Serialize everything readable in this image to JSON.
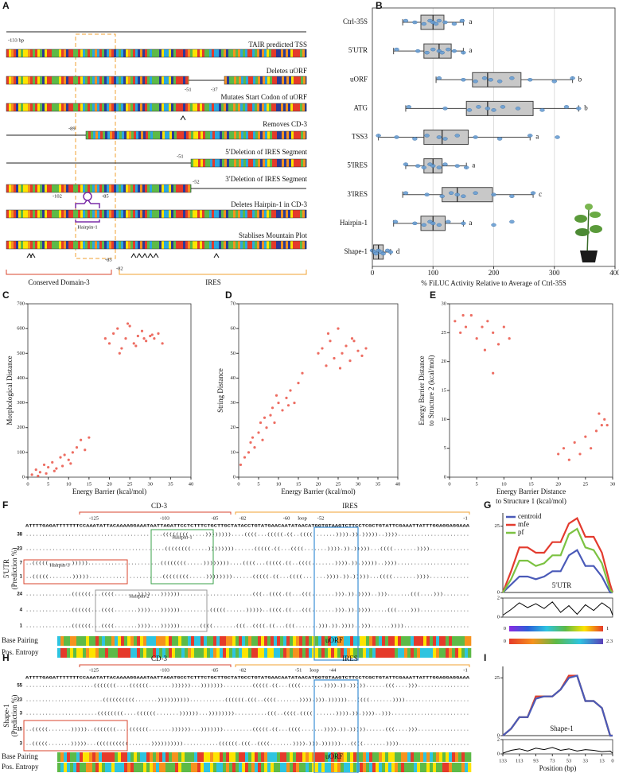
{
  "panel_labels": [
    "A",
    "B",
    "C",
    "D",
    "E",
    "F",
    "G",
    "H",
    "I"
  ],
  "construct_map": {
    "rows": [
      {
        "note": "TAIR predicted TSS",
        "positions": [
          "-133 bp"
        ]
      },
      {
        "note": "Deletes uORF",
        "positions": [
          "-51",
          "-37"
        ]
      },
      {
        "note": "Mutates Start Codon of uORF"
      },
      {
        "note": "Removes CD-3",
        "positions": [
          "-89"
        ]
      },
      {
        "note": "5′Deletion of IRES Segment",
        "positions": [
          "-51"
        ]
      },
      {
        "note": "3′Deletion of IRES Segment",
        "positions": [
          "-52"
        ]
      },
      {
        "note": "Deletes Hairpin-1 in CD-3",
        "positions": [
          "-102",
          "-85"
        ]
      },
      {
        "note": "Stablises Mountain Plot",
        "positions": [
          "-85",
          "-82"
        ]
      }
    ],
    "hairpin_label": "Hairpin-1",
    "domains": [
      "Conserved Domain-3",
      "IRES"
    ]
  },
  "chart_data": [
    {
      "type": "box",
      "categories": [
        "Ctrl-35S",
        "5'UTR",
        "uORF",
        "ATG",
        "TSS3",
        "5'IRES",
        "3'IRES",
        "Hairpin-1",
        "Shape-1"
      ],
      "q1": [
        80,
        85,
        165,
        155,
        85,
        85,
        115,
        80,
        2
      ],
      "median": [
        100,
        110,
        190,
        190,
        115,
        100,
        140,
        100,
        10
      ],
      "q3": [
        118,
        130,
        245,
        265,
        158,
        115,
        198,
        120,
        18
      ],
      "whisker_low": [
        50,
        35,
        105,
        55,
        10,
        55,
        50,
        35,
        0
      ],
      "whisker_high": [
        150,
        150,
        330,
        340,
        260,
        155,
        265,
        150,
        30
      ],
      "points": [
        [
          55,
          70,
          85,
          95,
          100,
          105,
          110,
          120,
          135,
          148
        ],
        [
          40,
          75,
          90,
          100,
          110,
          115,
          125,
          135,
          150
        ],
        [
          110,
          150,
          170,
          185,
          195,
          210,
          230,
          260,
          300,
          330
        ],
        [
          60,
          120,
          160,
          175,
          190,
          200,
          215,
          240,
          280,
          320,
          340
        ],
        [
          10,
          40,
          70,
          90,
          110,
          120,
          140,
          170,
          210,
          260,
          305
        ],
        [
          55,
          75,
          85,
          95,
          100,
          110,
          120,
          140,
          155
        ],
        [
          55,
          90,
          115,
          130,
          140,
          150,
          170,
          200,
          230,
          265
        ],
        [
          38,
          70,
          85,
          95,
          100,
          110,
          125,
          150,
          200,
          230
        ],
        [
          0,
          3,
          6,
          10,
          14,
          18,
          25,
          30
        ]
      ],
      "group_letters": [
        "a",
        "a",
        "b",
        "b",
        "a",
        "a",
        "c",
        "a",
        "d"
      ],
      "x_label": "% FiLUC Activity Relative to Average of Ctrl-35S",
      "xlim": [
        0,
        400
      ],
      "xticks": [
        0,
        100,
        200,
        300,
        400
      ],
      "grid": true,
      "color": "#c8c8c8",
      "point_color": "#6a9fd4"
    },
    {
      "type": "scatter",
      "x_label": "Energy Barrier (kcal/mol)",
      "y_label": "Morphological Distance",
      "x": [
        1,
        2,
        3,
        4,
        5,
        6,
        7,
        8,
        9,
        10,
        11,
        12,
        13,
        14,
        15,
        2.5,
        4.5,
        6.5,
        8.5,
        10.5,
        19,
        20,
        21,
        22,
        23,
        24,
        25,
        26,
        27,
        28,
        29,
        30,
        31,
        32,
        33,
        22.5,
        24.5,
        26.5,
        28.5,
        30.5
      ],
      "values": [
        10,
        30,
        20,
        50,
        40,
        60,
        35,
        80,
        90,
        70,
        100,
        120,
        150,
        110,
        160,
        5,
        15,
        25,
        45,
        55,
        560,
        540,
        580,
        600,
        520,
        560,
        610,
        540,
        570,
        590,
        550,
        570,
        560,
        580,
        540,
        500,
        620,
        530,
        560,
        575
      ],
      "xlim": [
        0,
        40
      ],
      "xticks": [
        0,
        5,
        10,
        15,
        20,
        25,
        30,
        35,
        40
      ],
      "ylim": [
        0,
        700
      ],
      "yticks": [
        0,
        100,
        200,
        300,
        400,
        500,
        600,
        700
      ],
      "color": "#e8483b"
    },
    {
      "type": "scatter",
      "x_label": "Energy Barrier (kcal/mol)",
      "y_label": "String Distance",
      "x": [
        0.5,
        1.5,
        2.5,
        3,
        4,
        5,
        5.5,
        6,
        7,
        8,
        8.5,
        9,
        10,
        11,
        12,
        13,
        14,
        15,
        16,
        3.5,
        6.5,
        9.5,
        12.5,
        20,
        21,
        22,
        23,
        24,
        25,
        26,
        27,
        28,
        29,
        30,
        31,
        32,
        22.5,
        25.5,
        28.5
      ],
      "values": [
        5,
        8,
        10,
        14,
        12,
        18,
        22,
        15,
        20,
        25,
        28,
        22,
        30,
        27,
        32,
        35,
        30,
        38,
        42,
        16,
        24,
        33,
        29,
        50,
        52,
        45,
        55,
        48,
        60,
        50,
        53,
        47,
        55,
        51,
        49,
        52,
        58,
        44,
        56
      ],
      "xlim": [
        0,
        40
      ],
      "xticks": [
        0,
        5,
        10,
        15,
        20,
        25,
        30,
        35,
        40
      ],
      "ylim": [
        0,
        70
      ],
      "yticks": [
        0,
        10,
        20,
        30,
        40,
        50,
        60,
        70
      ],
      "color": "#e8483b"
    },
    {
      "type": "scatter",
      "x_label": [
        "Energy Barrier Distance",
        "to Structure 1 (kcal/mol)"
      ],
      "y_label": [
        "Energy Barrier Distance",
        "to Structure 2 (kcal/mol)"
      ],
      "x": [
        1,
        2,
        3,
        4,
        5,
        6,
        7,
        8,
        9,
        10,
        11,
        2.5,
        6.5,
        8,
        20,
        21,
        22,
        23,
        24,
        25,
        26,
        27,
        28,
        28.5,
        29,
        27.5
      ],
      "values": [
        27,
        25,
        26,
        28,
        24,
        26,
        27,
        25,
        23,
        26,
        24,
        28,
        22,
        18,
        4,
        5,
        3,
        6,
        4,
        7,
        5,
        8,
        9,
        10,
        9,
        11
      ],
      "xlim": [
        0,
        30
      ],
      "xticks": [
        0,
        5,
        10,
        15,
        20,
        25,
        30
      ],
      "ylim": [
        0,
        30
      ],
      "yticks": [
        0,
        5,
        10,
        15,
        20,
        25,
        30
      ],
      "color": "#e8483b"
    },
    {
      "type": "line",
      "label": "5′UTR",
      "legend": true,
      "x": [
        133,
        123,
        113,
        103,
        93,
        83,
        73,
        63,
        53,
        43,
        33,
        23,
        13,
        3,
        0
      ],
      "series": [
        {
          "name": "centroid",
          "color": "#4a5ab8",
          "values": [
            0,
            3,
            6,
            6,
            5,
            6,
            8,
            8,
            14,
            16,
            10,
            10,
            6,
            0,
            0
          ]
        },
        {
          "name": "mfe",
          "color": "#e33b2e",
          "values": [
            0,
            8,
            17,
            17,
            15,
            15,
            19,
            19,
            26,
            28,
            21,
            21,
            15,
            3,
            0
          ]
        },
        {
          "name": "pf",
          "color": "#7cc242",
          "values": [
            0,
            5,
            12,
            12,
            10,
            11,
            14,
            14,
            22,
            24,
            17,
            16,
            11,
            1,
            0
          ]
        }
      ],
      "xlim": [
        133,
        0
      ],
      "ylim": [
        0,
        30
      ],
      "yticks": [
        0,
        25
      ]
    },
    {
      "type": "line",
      "x": [
        133,
        123,
        113,
        103,
        93,
        83,
        73,
        63,
        53,
        43,
        33,
        23,
        13,
        3,
        0
      ],
      "series": [
        {
          "color": "#000000",
          "values": [
            0.2,
            0.8,
            1.5,
            1.0,
            1.4,
            0.9,
            1.6,
            0.5,
            1.2,
            0.3,
            1.3,
            0.7,
            1.5,
            0.9,
            0.2
          ]
        }
      ],
      "xlim": [
        133,
        0
      ],
      "ylim": [
        0,
        2
      ],
      "yticks": [
        0,
        2
      ]
    },
    {
      "type": "line",
      "label": "Shape-1",
      "x": [
        133,
        123,
        113,
        103,
        93,
        83,
        73,
        63,
        53,
        43,
        33,
        23,
        13,
        3,
        0
      ],
      "series": [
        {
          "color": "#7cc242",
          "values": [
            0,
            3,
            8,
            8,
            17,
            17,
            17,
            20,
            26,
            26,
            15,
            15,
            12,
            0,
            0
          ]
        },
        {
          "color": "#e33b2e",
          "values": [
            0,
            3,
            8,
            8,
            17,
            17,
            17,
            20,
            26,
            26,
            15,
            15,
            12,
            0,
            0
          ]
        },
        {
          "color": "#4a5ab8",
          "values": [
            0,
            3,
            8,
            8,
            16,
            17,
            17,
            20,
            25,
            26,
            15,
            15,
            12,
            0,
            0
          ]
        }
      ],
      "xlim": [
        133,
        0
      ],
      "ylim": [
        0,
        30
      ],
      "yticks": [
        0,
        25
      ]
    },
    {
      "type": "line",
      "x": [
        133,
        123,
        113,
        103,
        93,
        83,
        73,
        63,
        53,
        43,
        33,
        23,
        13,
        3,
        0
      ],
      "series": [
        {
          "color": "#000000",
          "values": [
            0.1,
            0.5,
            0.7,
            0.4,
            0.8,
            0.6,
            0.9,
            0.5,
            0.7,
            0.4,
            0.6,
            0.5,
            0.3,
            0.4,
            0.1
          ]
        }
      ],
      "xlim": [
        133,
        0
      ],
      "ylim": [
        0,
        2
      ],
      "yticks": [
        0,
        2
      ],
      "xticks": [
        133,
        113,
        93,
        73,
        53,
        33,
        13,
        0
      ],
      "x_label": "Position (bp)"
    }
  ],
  "alignments": [
    {
      "y_label": [
        "5'UTR",
        "(Prediction %)"
      ],
      "domains": [
        "CD-3",
        "IRES"
      ],
      "positions": [
        "-125",
        "-103",
        "-85",
        "-82",
        "-60",
        "loop",
        "-52",
        "-1"
      ],
      "sequence": "ATTTTGAGATTTTTTTCCAAATATTACAAAAGGAAATAATTAGATTCCTCTTTCTGCTTGCTATACCTGTATGAACAATATAACATGGTGTAAGTCTTCCTCGCTGTATTCGAAATTATTTGGAGGAGGAAA",
      "rows": [
        {
          "percent": 38,
          "color": "#1f7a5a",
          "structure": "..........................................((((((((.....))))))))....((((...(((((.((..((((.......)))).)).)))))..))))......................"
        },
        {
          "percent": 23,
          "color": "#1f7a5a",
          "structure": "..........................................((((((((.....))))))))......(((((.((...((((.......)))).)).)))))...((((.......))))............"
        },
        {
          "percent": 7,
          "color": "#1f7a5a",
          "structure": "..(((((.......)))))......................((((((((.....))))))))....((((...(((((.((..((((.......)))).)).)))))..))))......................"
        },
        {
          "percent": 1,
          "color": "#1f7a5a",
          "structure": "..(((((.......)))))......................((((((((.....))))))))......(((((.((...((((.......)))).)).)))))...((((.......))))............"
        },
        {
          "percent": 24,
          "color": "#b3261e",
          "structure": "..............((((((...((((.......))))...))))))......................(((..((((.((...(((.......))).)).))))..))).......(((....)))........"
        },
        {
          "percent": 4,
          "color": "#b3261e",
          "structure": "..............((((((...((((.......))))...)))))).........(((((......)))))..((((.((...(((.......))).)).)))).....(((....)))..............."
        },
        {
          "percent": 1,
          "color": "#b3261e",
          "structure": "..............((((((...((((.......))))...))))))......((((.......(((..((((.((...(((.......))).)).))))..)))......))))...................."
        }
      ],
      "hairpins": [
        "Hairpin-1",
        "Hairpin-3",
        "Hairpin-2"
      ],
      "tracks": [
        "Base Pairing",
        "Pos. Entropy"
      ],
      "uorf": "uORF"
    },
    {
      "y_label": [
        "Shape-1",
        "(Prediction %)"
      ],
      "domains": [
        "CD-3",
        "IRES"
      ],
      "positions": [
        "-125",
        "-103",
        "-85",
        "-82",
        "-51",
        "loop",
        "-44",
        "-1"
      ],
      "sequence": "ATTTTGAGATTTTTTTCCAAATATTACAAAAGGAAATAATTAGATGCCTCTTTCTGCTTGCTATGCCTGTATGAACAATATAACATGGTGTAAGTCTTCCTCGCTGTATTCGAAATTATTTGGAGGAGGAAA",
      "rows": [
        {
          "percent": 55,
          "color": "#111111",
          "structure": ".....................(((((((....((((((.......))))))...))))))).........(((((.((...((((.......)))).)).)))))......(((....)))................"
        },
        {
          "percent": 23,
          "color": "#111111",
          "structure": "........................((((((((((.......))))))))))...........((((((.(((..((((.......)))).))).))))))...((((.......))))...................."
        },
        {
          "percent": 3,
          "color": "#111111",
          "structure": "......................((((((((....((((((.......))))))...))))))))..........(((..((((.((((.......)))).)).))))..)))........................"
        },
        {
          "percent": 15,
          "color": "#111111",
          "structure": "..(((((.......)))))..(((((((....((((((.......))))))...))))))).........(((((.((...((((.......)))).)).)))))......(((....)))................"
        },
        {
          "percent": 3,
          "color": "#111111",
          "structure": "..(((((.......)))))...((((((((((.......))))))))))...........((((((.(((..((((.......)))).))).))))))...((((.......))))......................"
        }
      ],
      "tracks": [
        "Base Pairing",
        "Pos. Entropy"
      ],
      "uorf": "uORF"
    }
  ],
  "colorbars": [
    {
      "min": 0,
      "max": 1
    },
    {
      "min": 0,
      "max": 2.3
    }
  ]
}
